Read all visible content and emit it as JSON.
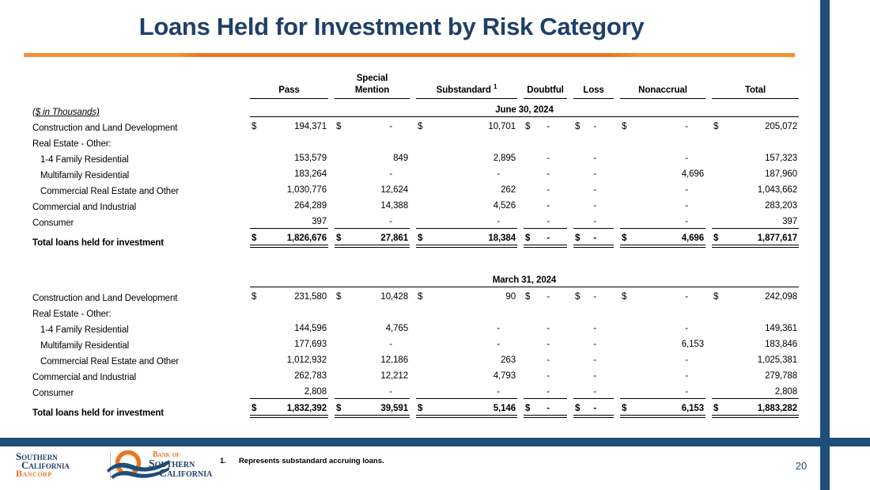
{
  "slide": {
    "title": "Loans Held for Investment by Risk Category",
    "units_label": "($ in Thousands)",
    "footnote_number": "1.",
    "footnote_text": "Represents substandard accruing loans.",
    "page_number": "20"
  },
  "logos": {
    "bancorp": {
      "line1": "Southern",
      "line2": "California",
      "line3": "Bancorp"
    },
    "bank": {
      "line1": "Bank of",
      "line2": "Southern",
      "line3": "California"
    },
    "wave_icon": "orange-ring-blue-waves"
  },
  "colors": {
    "title_navy": "#1f4068",
    "bar_navy": "#1f4e79",
    "accent_orange": "#e87722",
    "rule_orange": "#f0932e"
  },
  "chart_data": {
    "type": "table",
    "title": "Loans Held for Investment by Risk Category",
    "units": "$ in Thousands",
    "columns": [
      "Pass",
      "Special Mention",
      "Substandard",
      "Doubtful",
      "Loss",
      "Nonaccrual",
      "Total"
    ],
    "substandard_superscript": "1",
    "sections": [
      {
        "date": "June 30, 2024",
        "rows": [
          {
            "label": "Construction and Land Development",
            "indent": false,
            "total": false,
            "dollar": true,
            "values": [
              "194,371",
              "-",
              "10,701",
              "-",
              "-",
              "-",
              "205,072"
            ]
          },
          {
            "label": "Real Estate - Other:",
            "indent": false,
            "total": false,
            "dollar": false,
            "values": [
              "",
              "",
              "",
              "",
              "",
              "",
              ""
            ]
          },
          {
            "label": "1-4 Family Residential",
            "indent": true,
            "total": false,
            "dollar": false,
            "values": [
              "153,579",
              "849",
              "2,895",
              "-",
              "-",
              "-",
              "157,323"
            ]
          },
          {
            "label": "Multifamily Residential",
            "indent": true,
            "total": false,
            "dollar": false,
            "values": [
              "183,264",
              "-",
              "-",
              "-",
              "-",
              "4,696",
              "187,960"
            ]
          },
          {
            "label": "Commercial Real Estate and Other",
            "indent": true,
            "total": false,
            "dollar": false,
            "values": [
              "1,030,776",
              "12,624",
              "262",
              "-",
              "-",
              "-",
              "1,043,662"
            ]
          },
          {
            "label": "Commercial and Industrial",
            "indent": false,
            "total": false,
            "dollar": false,
            "values": [
              "264,289",
              "14,388",
              "4,526",
              "-",
              "-",
              "-",
              "283,203"
            ]
          },
          {
            "label": "Consumer",
            "indent": false,
            "total": false,
            "dollar": false,
            "values": [
              "397",
              "-",
              "-",
              "-",
              "-",
              "-",
              "397"
            ]
          },
          {
            "label": "Total loans held for investment",
            "indent": false,
            "total": true,
            "dollar": true,
            "values": [
              "1,826,676",
              "27,861",
              "18,384",
              "-",
              "-",
              "4,696",
              "1,877,617"
            ]
          }
        ]
      },
      {
        "date": "March 31, 2024",
        "rows": [
          {
            "label": "Construction and Land Development",
            "indent": false,
            "total": false,
            "dollar": true,
            "values": [
              "231,580",
              "10,428",
              "90",
              "-",
              "-",
              "-",
              "242,098"
            ]
          },
          {
            "label": "Real Estate - Other:",
            "indent": false,
            "total": false,
            "dollar": false,
            "values": [
              "",
              "",
              "",
              "",
              "",
              "",
              ""
            ]
          },
          {
            "label": "1-4 Family Residential",
            "indent": true,
            "total": false,
            "dollar": false,
            "values": [
              "144,596",
              "4,765",
              "-",
              "-",
              "-",
              "-",
              "149,361"
            ]
          },
          {
            "label": "Multifamily Residential",
            "indent": true,
            "total": false,
            "dollar": false,
            "values": [
              "177,693",
              "-",
              "-",
              "-",
              "-",
              "6,153",
              "183,846"
            ]
          },
          {
            "label": "Commercial Real Estate and Other",
            "indent": true,
            "total": false,
            "dollar": false,
            "values": [
              "1,012,932",
              "12,186",
              "263",
              "-",
              "-",
              "-",
              "1,025,381"
            ]
          },
          {
            "label": "Commercial and Industrial",
            "indent": false,
            "total": false,
            "dollar": false,
            "values": [
              "262,783",
              "12,212",
              "4,793",
              "-",
              "-",
              "-",
              "279,788"
            ]
          },
          {
            "label": "Consumer",
            "indent": false,
            "total": false,
            "dollar": false,
            "values": [
              "2,808",
              "-",
              "-",
              "-",
              "-",
              "-",
              "2,808"
            ]
          },
          {
            "label": "Total loans held for investment",
            "indent": false,
            "total": true,
            "dollar": true,
            "values": [
              "1,832,392",
              "39,591",
              "5,146",
              "-",
              "-",
              "6,153",
              "1,883,282"
            ]
          }
        ]
      }
    ]
  }
}
